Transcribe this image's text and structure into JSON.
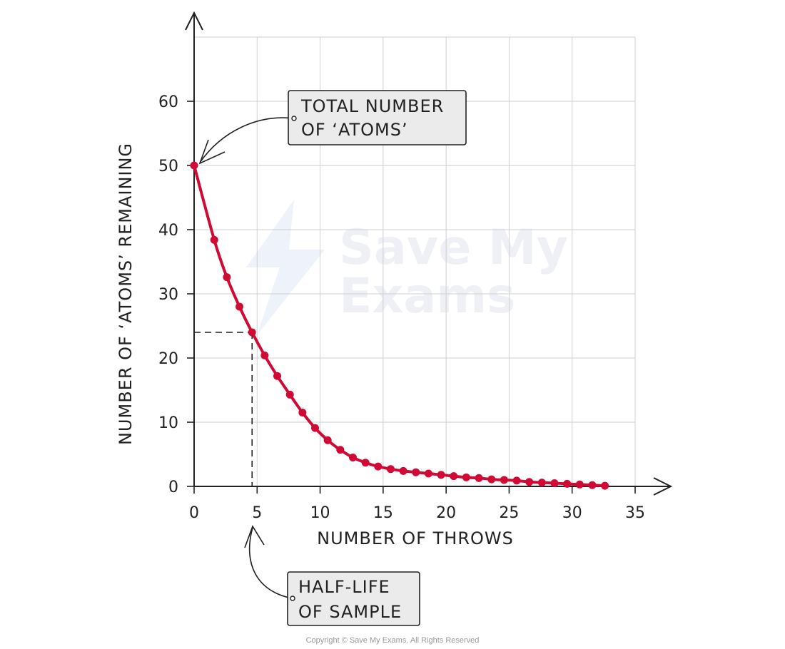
{
  "chart_data": {
    "type": "scatter",
    "xlabel": "NUMBER OF THROWS",
    "ylabel": "NUMBER OF ‘ATOMS’ REMAINING",
    "xlim": [
      0,
      35
    ],
    "ylim": [
      0,
      70
    ],
    "x_ticks": [
      0,
      5,
      10,
      15,
      20,
      25,
      30,
      35
    ],
    "y_ticks": [
      0,
      10,
      20,
      30,
      40,
      50,
      60
    ],
    "grid": true,
    "series": [
      {
        "color": "#d10a35",
        "points": [
          [
            0,
            50
          ],
          [
            1.6,
            38.4
          ],
          [
            2.6,
            32.6
          ],
          [
            3.6,
            28.0
          ],
          [
            4.6,
            24.0
          ],
          [
            5.6,
            20.4
          ],
          [
            6.6,
            17.2
          ],
          [
            7.6,
            14.3
          ],
          [
            8.6,
            11.5
          ],
          [
            9.6,
            9.1
          ],
          [
            10.6,
            7.2
          ],
          [
            11.6,
            5.7
          ],
          [
            12.6,
            4.5
          ],
          [
            13.6,
            3.7
          ],
          [
            14.6,
            3.1
          ],
          [
            15.6,
            2.7
          ],
          [
            16.6,
            2.4
          ],
          [
            17.6,
            2.2
          ],
          [
            18.6,
            2.0
          ],
          [
            19.6,
            1.8
          ],
          [
            20.6,
            1.6
          ],
          [
            21.6,
            1.4
          ],
          [
            22.6,
            1.3
          ],
          [
            23.6,
            1.1
          ],
          [
            24.6,
            1.0
          ],
          [
            25.6,
            0.9
          ],
          [
            26.6,
            0.7
          ],
          [
            27.6,
            0.6
          ],
          [
            28.6,
            0.5
          ],
          [
            29.6,
            0.4
          ],
          [
            30.6,
            0.3
          ],
          [
            31.6,
            0.2
          ],
          [
            32.6,
            0.1
          ]
        ]
      }
    ],
    "reference": {
      "x": 4.6,
      "y": 24.0
    },
    "annotations": [
      {
        "id": "total",
        "lines": [
          "TOTAL NUMBER",
          "OF ‘ATOMS’"
        ],
        "target": [
          0,
          50
        ]
      },
      {
        "id": "halflife",
        "lines": [
          "HALF-LIFE",
          "OF SAMPLE"
        ],
        "target": [
          4.6,
          0
        ]
      }
    ]
  },
  "watermark": {
    "line1": "Save My",
    "line2": "Exams"
  },
  "copyright": "Copyright © Save My Exams. All Rights Reserved",
  "colors": {
    "curve": "#d10a35",
    "grid": "#cfcfcf",
    "callout_fill": "#ebebeb",
    "axis": "#222222"
  }
}
